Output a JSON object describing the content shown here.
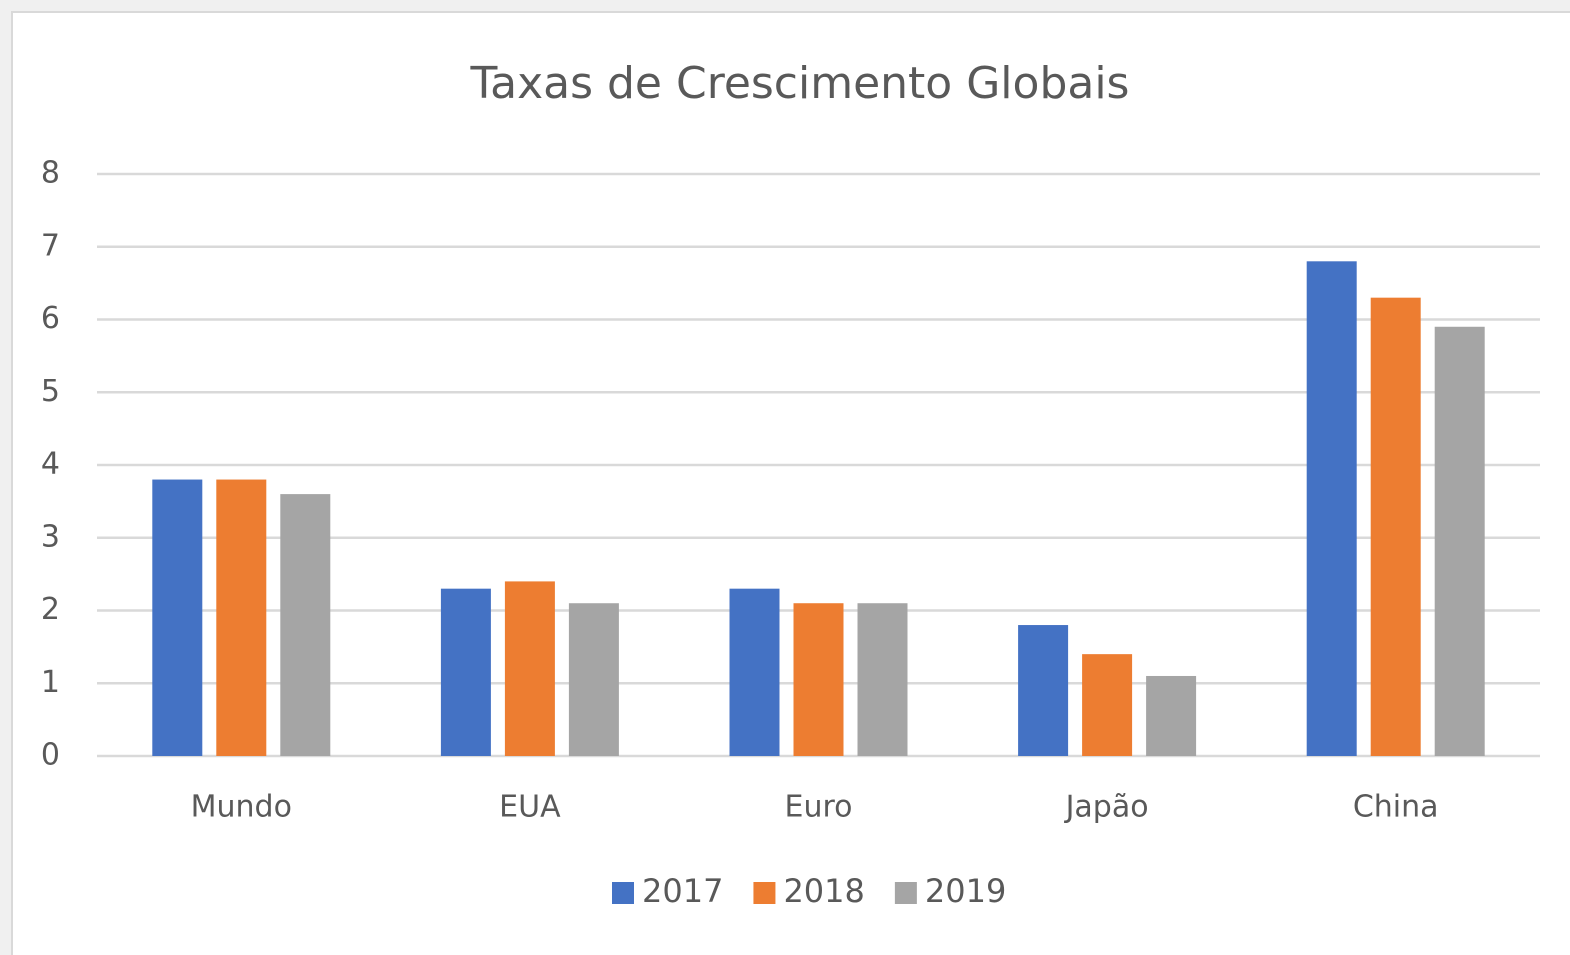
{
  "chart_data": {
    "type": "bar",
    "title": "Taxas de Crescimento Globais",
    "categories": [
      "Mundo",
      "EUA",
      "Euro",
      "Japão",
      "China"
    ],
    "series": [
      {
        "name": "2017",
        "color": "#4472c4",
        "values": [
          3.8,
          2.3,
          2.3,
          1.8,
          6.8
        ]
      },
      {
        "name": "2018",
        "color": "#ed7d31",
        "values": [
          3.8,
          2.4,
          2.1,
          1.4,
          6.3
        ]
      },
      {
        "name": "2019",
        "color": "#a5a5a5",
        "values": [
          3.6,
          2.1,
          2.1,
          1.1,
          5.9
        ]
      }
    ],
    "ylim": [
      0,
      8
    ],
    "yticks": [
      0,
      1,
      2,
      3,
      4,
      5,
      6,
      7,
      8
    ],
    "grid": true,
    "legend": "bottom"
  }
}
